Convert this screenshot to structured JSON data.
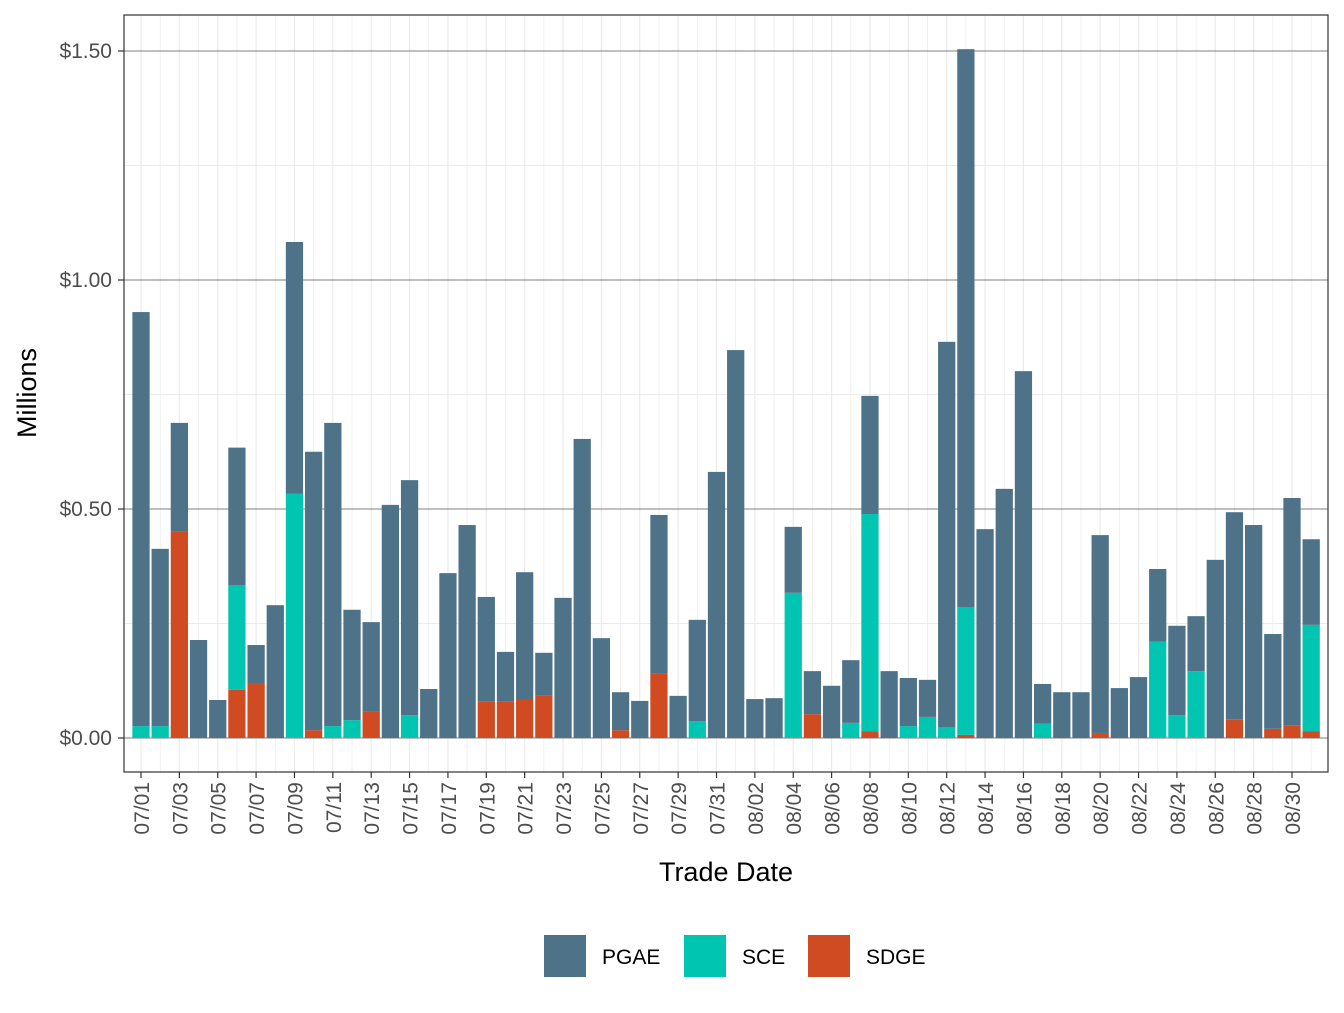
{
  "chart_data": {
    "type": "bar",
    "stacked": true,
    "xlabel": "Trade Date",
    "ylabel": "Millions",
    "ylim": [
      -0.07,
      1.58
    ],
    "yticks": [
      0,
      0.5,
      1.0,
      1.5
    ],
    "ytick_labels": [
      "$0.00",
      "$0.50",
      "$1.00",
      "$1.50"
    ],
    "grid": true,
    "legend_position": "bottom",
    "categories": [
      "07/01",
      "07/02",
      "07/03",
      "07/04",
      "07/05",
      "07/06",
      "07/07",
      "07/08",
      "07/09",
      "07/10",
      "07/11",
      "07/12",
      "07/13",
      "07/14",
      "07/15",
      "07/16",
      "07/17",
      "07/18",
      "07/19",
      "07/20",
      "07/21",
      "07/22",
      "07/23",
      "07/24",
      "07/25",
      "07/26",
      "07/27",
      "07/28",
      "07/29",
      "07/30",
      "07/31",
      "08/01",
      "08/02",
      "08/03",
      "08/04",
      "08/05",
      "08/06",
      "08/07",
      "08/08",
      "08/09",
      "08/10",
      "08/11",
      "08/12",
      "08/13",
      "08/14",
      "08/15",
      "08/16",
      "08/17",
      "08/18",
      "08/19",
      "08/20",
      "08/21",
      "08/22",
      "08/23",
      "08/24",
      "08/25",
      "08/26",
      "08/27",
      "08/28",
      "08/29",
      "08/30",
      "08/31"
    ],
    "xtick_labels": [
      "07/01",
      "07/03",
      "07/05",
      "07/07",
      "07/09",
      "07/11",
      "07/13",
      "07/15",
      "07/17",
      "07/19",
      "07/21",
      "07/23",
      "07/25",
      "07/27",
      "07/29",
      "07/31",
      "08/02",
      "08/04",
      "08/06",
      "08/08",
      "08/10",
      "08/12",
      "08/14",
      "08/16",
      "08/18",
      "08/20",
      "08/22",
      "08/24",
      "08/26",
      "08/28",
      "08/30"
    ],
    "series": [
      {
        "name": "SDGE",
        "color": "#D04A22",
        "values": [
          0,
          0,
          0.45,
          0,
          0,
          0.105,
          0.118,
          0,
          0,
          0.017,
          0,
          0,
          0.057,
          0,
          0,
          0,
          0,
          0,
          0.079,
          0.079,
          0.083,
          0.092,
          0,
          0,
          0,
          0.017,
          0,
          0.14,
          0,
          0,
          0,
          0,
          0,
          0,
          0,
          0.052,
          0,
          0,
          0.015,
          0,
          0,
          0,
          0,
          0.007,
          0,
          0,
          0,
          0,
          0,
          0,
          0.011,
          0,
          0,
          0,
          0,
          0,
          0,
          0.041,
          0,
          0.02,
          0.028,
          0.015
        ]
      },
      {
        "name": "SCE",
        "color": "#00C5B0",
        "values": [
          0.026,
          0.026,
          0,
          0,
          0,
          0.229,
          0,
          0,
          0.533,
          0,
          0.026,
          0.039,
          0,
          0,
          0.05,
          0,
          0,
          0,
          0,
          0,
          0,
          0,
          0,
          0,
          0,
          0,
          0,
          0,
          0,
          0.037,
          0,
          0,
          0,
          0,
          0.317,
          0,
          0,
          0.033,
          0.474,
          0,
          0.026,
          0.046,
          0.024,
          0.279,
          0,
          0,
          0,
          0.031,
          0,
          0,
          0,
          0,
          0,
          0.21,
          0.05,
          0.146,
          0,
          0,
          0,
          0,
          0,
          0.232
        ]
      },
      {
        "name": "PGAE",
        "color": "#4E7389",
        "values": [
          0.904,
          0.387,
          0.238,
          0.214,
          0.083,
          0.3,
          0.085,
          0.29,
          0.55,
          0.608,
          0.662,
          0.241,
          0.196,
          0.509,
          0.513,
          0.107,
          0.36,
          0.465,
          0.229,
          0.109,
          0.279,
          0.094,
          0.306,
          0.653,
          0.218,
          0.083,
          0.081,
          0.347,
          0.092,
          0.221,
          0.581,
          0.847,
          0.085,
          0.087,
          0.144,
          0.094,
          0.114,
          0.137,
          0.258,
          0.146,
          0.105,
          0.081,
          0.841,
          1.218,
          0.456,
          0.544,
          0.801,
          0.087,
          0.1,
          0.1,
          0.432,
          0.109,
          0.133,
          0.159,
          0.195,
          0.12,
          0.389,
          0.452,
          0.465,
          0.207,
          0.496,
          0.187
        ]
      }
    ],
    "legend": [
      "PGAE",
      "SCE",
      "SDGE"
    ]
  }
}
